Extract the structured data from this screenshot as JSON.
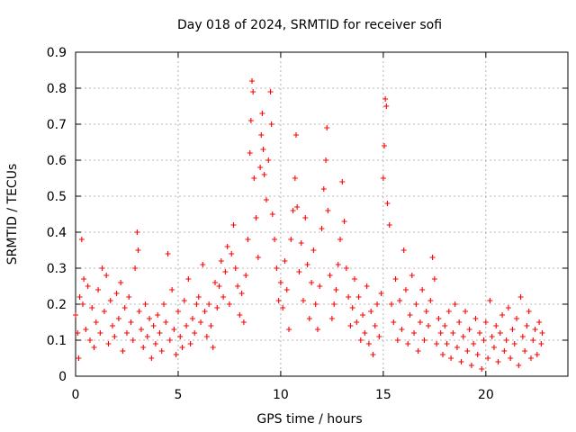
{
  "chart_data": {
    "type": "scatter",
    "title": "Day 018 of 2024, SRMTID for receiver sofi",
    "xlabel": "GPS time / hours",
    "ylabel": "SRMTID / TECUs",
    "xlim": [
      0,
      24
    ],
    "ylim": [
      0,
      0.9
    ],
    "xticks": [
      0,
      5,
      10,
      15,
      20
    ],
    "yticks": [
      0,
      0.1,
      0.2,
      0.3,
      0.4,
      0.5,
      0.6,
      0.7,
      0.8,
      0.9
    ],
    "xtick_labels": [
      "0",
      "5",
      "10",
      "15",
      "20"
    ],
    "ytick_labels": [
      "0",
      "0.1",
      "0.2",
      "0.3",
      "0.4",
      "0.5",
      "0.6",
      "0.7",
      "0.8",
      "0.9"
    ],
    "grid": true,
    "marker": "+",
    "color": "#ff0000",
    "series": [
      {
        "name": "sofi",
        "points": [
          [
            0.0,
            0.17
          ],
          [
            0.1,
            0.12
          ],
          [
            0.15,
            0.05
          ],
          [
            0.2,
            0.22
          ],
          [
            0.3,
            0.38
          ],
          [
            0.35,
            0.2
          ],
          [
            0.4,
            0.27
          ],
          [
            0.5,
            0.13
          ],
          [
            0.6,
            0.25
          ],
          [
            0.7,
            0.1
          ],
          [
            0.8,
            0.19
          ],
          [
            0.9,
            0.08
          ],
          [
            1.0,
            0.15
          ],
          [
            1.1,
            0.24
          ],
          [
            1.2,
            0.12
          ],
          [
            1.3,
            0.3
          ],
          [
            1.4,
            0.18
          ],
          [
            1.5,
            0.28
          ],
          [
            1.6,
            0.09
          ],
          [
            1.7,
            0.21
          ],
          [
            1.8,
            0.14
          ],
          [
            1.9,
            0.11
          ],
          [
            2.0,
            0.23
          ],
          [
            2.1,
            0.16
          ],
          [
            2.2,
            0.26
          ],
          [
            2.3,
            0.07
          ],
          [
            2.4,
            0.19
          ],
          [
            2.5,
            0.12
          ],
          [
            2.6,
            0.22
          ],
          [
            2.7,
            0.15
          ],
          [
            2.8,
            0.1
          ],
          [
            2.9,
            0.3
          ],
          [
            3.0,
            0.4
          ],
          [
            3.05,
            0.35
          ],
          [
            3.1,
            0.18
          ],
          [
            3.2,
            0.13
          ],
          [
            3.3,
            0.08
          ],
          [
            3.4,
            0.2
          ],
          [
            3.5,
            0.11
          ],
          [
            3.6,
            0.16
          ],
          [
            3.7,
            0.05
          ],
          [
            3.8,
            0.14
          ],
          [
            3.9,
            0.09
          ],
          [
            4.0,
            0.17
          ],
          [
            4.1,
            0.12
          ],
          [
            4.2,
            0.07
          ],
          [
            4.3,
            0.2
          ],
          [
            4.4,
            0.15
          ],
          [
            4.5,
            0.34
          ],
          [
            4.6,
            0.1
          ],
          [
            4.7,
            0.24
          ],
          [
            4.8,
            0.13
          ],
          [
            4.9,
            0.06
          ],
          [
            5.0,
            0.18
          ],
          [
            5.1,
            0.11
          ],
          [
            5.2,
            0.08
          ],
          [
            5.3,
            0.21
          ],
          [
            5.4,
            0.14
          ],
          [
            5.5,
            0.27
          ],
          [
            5.6,
            0.09
          ],
          [
            5.7,
            0.16
          ],
          [
            5.8,
            0.12
          ],
          [
            5.9,
            0.2
          ],
          [
            6.0,
            0.22
          ],
          [
            6.1,
            0.15
          ],
          [
            6.2,
            0.31
          ],
          [
            6.3,
            0.18
          ],
          [
            6.4,
            0.11
          ],
          [
            6.5,
            0.2
          ],
          [
            6.6,
            0.14
          ],
          [
            6.7,
            0.08
          ],
          [
            6.8,
            0.26
          ],
          [
            6.9,
            0.19
          ],
          [
            7.0,
            0.25
          ],
          [
            7.1,
            0.32
          ],
          [
            7.2,
            0.22
          ],
          [
            7.3,
            0.29
          ],
          [
            7.4,
            0.36
          ],
          [
            7.5,
            0.2
          ],
          [
            7.6,
            0.34
          ],
          [
            7.7,
            0.42
          ],
          [
            7.8,
            0.3
          ],
          [
            7.9,
            0.25
          ],
          [
            8.0,
            0.17
          ],
          [
            8.1,
            0.23
          ],
          [
            8.2,
            0.15
          ],
          [
            8.3,
            0.28
          ],
          [
            8.4,
            0.38
          ],
          [
            8.5,
            0.62
          ],
          [
            8.55,
            0.71
          ],
          [
            8.6,
            0.82
          ],
          [
            8.65,
            0.79
          ],
          [
            8.7,
            0.55
          ],
          [
            8.8,
            0.44
          ],
          [
            8.9,
            0.33
          ],
          [
            9.0,
            0.58
          ],
          [
            9.05,
            0.67
          ],
          [
            9.1,
            0.73
          ],
          [
            9.15,
            0.63
          ],
          [
            9.2,
            0.56
          ],
          [
            9.3,
            0.49
          ],
          [
            9.4,
            0.6
          ],
          [
            9.5,
            0.79
          ],
          [
            9.55,
            0.7
          ],
          [
            9.6,
            0.45
          ],
          [
            9.7,
            0.38
          ],
          [
            9.8,
            0.3
          ],
          [
            9.9,
            0.21
          ],
          [
            10.0,
            0.26
          ],
          [
            10.1,
            0.19
          ],
          [
            10.2,
            0.32
          ],
          [
            10.3,
            0.24
          ],
          [
            10.4,
            0.13
          ],
          [
            10.5,
            0.38
          ],
          [
            10.6,
            0.46
          ],
          [
            10.7,
            0.55
          ],
          [
            10.75,
            0.67
          ],
          [
            10.8,
            0.47
          ],
          [
            10.9,
            0.29
          ],
          [
            11.0,
            0.37
          ],
          [
            11.1,
            0.21
          ],
          [
            11.2,
            0.44
          ],
          [
            11.3,
            0.31
          ],
          [
            11.4,
            0.16
          ],
          [
            11.5,
            0.26
          ],
          [
            11.6,
            0.35
          ],
          [
            11.7,
            0.2
          ],
          [
            11.8,
            0.13
          ],
          [
            11.9,
            0.25
          ],
          [
            12.0,
            0.41
          ],
          [
            12.1,
            0.52
          ],
          [
            12.2,
            0.6
          ],
          [
            12.25,
            0.69
          ],
          [
            12.3,
            0.46
          ],
          [
            12.4,
            0.28
          ],
          [
            12.5,
            0.16
          ],
          [
            12.6,
            0.2
          ],
          [
            12.7,
            0.24
          ],
          [
            12.8,
            0.31
          ],
          [
            12.9,
            0.38
          ],
          [
            13.0,
            0.54
          ],
          [
            13.1,
            0.43
          ],
          [
            13.2,
            0.3
          ],
          [
            13.3,
            0.22
          ],
          [
            13.4,
            0.14
          ],
          [
            13.5,
            0.19
          ],
          [
            13.6,
            0.27
          ],
          [
            13.7,
            0.15
          ],
          [
            13.8,
            0.22
          ],
          [
            13.9,
            0.1
          ],
          [
            14.0,
            0.17
          ],
          [
            14.1,
            0.12
          ],
          [
            14.2,
            0.25
          ],
          [
            14.3,
            0.09
          ],
          [
            14.4,
            0.18
          ],
          [
            14.5,
            0.06
          ],
          [
            14.6,
            0.14
          ],
          [
            14.7,
            0.2
          ],
          [
            14.8,
            0.11
          ],
          [
            14.9,
            0.23
          ],
          [
            15.0,
            0.55
          ],
          [
            15.05,
            0.64
          ],
          [
            15.1,
            0.77
          ],
          [
            15.15,
            0.75
          ],
          [
            15.2,
            0.48
          ],
          [
            15.3,
            0.42
          ],
          [
            15.4,
            0.2
          ],
          [
            15.5,
            0.15
          ],
          [
            15.6,
            0.27
          ],
          [
            15.7,
            0.1
          ],
          [
            15.8,
            0.21
          ],
          [
            15.9,
            0.13
          ],
          [
            16.0,
            0.35
          ],
          [
            16.1,
            0.24
          ],
          [
            16.2,
            0.09
          ],
          [
            16.3,
            0.17
          ],
          [
            16.4,
            0.28
          ],
          [
            16.5,
            0.12
          ],
          [
            16.6,
            0.2
          ],
          [
            16.7,
            0.07
          ],
          [
            16.8,
            0.15
          ],
          [
            16.9,
            0.24
          ],
          [
            17.0,
            0.1
          ],
          [
            17.1,
            0.18
          ],
          [
            17.2,
            0.14
          ],
          [
            17.3,
            0.21
          ],
          [
            17.4,
            0.33
          ],
          [
            17.5,
            0.27
          ],
          [
            17.6,
            0.09
          ],
          [
            17.7,
            0.16
          ],
          [
            17.8,
            0.12
          ],
          [
            17.9,
            0.06
          ],
          [
            18.0,
            0.14
          ],
          [
            18.1,
            0.09
          ],
          [
            18.2,
            0.18
          ],
          [
            18.3,
            0.05
          ],
          [
            18.4,
            0.12
          ],
          [
            18.5,
            0.2
          ],
          [
            18.6,
            0.08
          ],
          [
            18.7,
            0.15
          ],
          [
            18.8,
            0.04
          ],
          [
            18.9,
            0.11
          ],
          [
            19.0,
            0.18
          ],
          [
            19.1,
            0.07
          ],
          [
            19.2,
            0.13
          ],
          [
            19.3,
            0.03
          ],
          [
            19.4,
            0.09
          ],
          [
            19.5,
            0.16
          ],
          [
            19.6,
            0.06
          ],
          [
            19.7,
            0.12
          ],
          [
            19.8,
            0.02
          ],
          [
            19.9,
            0.1
          ],
          [
            20.0,
            0.15
          ],
          [
            20.1,
            0.05
          ],
          [
            20.2,
            0.21
          ],
          [
            20.3,
            0.11
          ],
          [
            20.4,
            0.08
          ],
          [
            20.5,
            0.14
          ],
          [
            20.6,
            0.04
          ],
          [
            20.7,
            0.12
          ],
          [
            20.8,
            0.17
          ],
          [
            20.9,
            0.07
          ],
          [
            21.0,
            0.1
          ],
          [
            21.1,
            0.19
          ],
          [
            21.2,
            0.05
          ],
          [
            21.3,
            0.13
          ],
          [
            21.4,
            0.09
          ],
          [
            21.5,
            0.16
          ],
          [
            21.6,
            0.03
          ],
          [
            21.7,
            0.22
          ],
          [
            21.8,
            0.11
          ],
          [
            21.9,
            0.07
          ],
          [
            22.0,
            0.14
          ],
          [
            22.1,
            0.18
          ],
          [
            22.2,
            0.05
          ],
          [
            22.3,
            0.1
          ],
          [
            22.4,
            0.13
          ],
          [
            22.5,
            0.06
          ],
          [
            22.6,
            0.15
          ],
          [
            22.7,
            0.09
          ],
          [
            22.75,
            0.12
          ]
        ]
      }
    ]
  }
}
